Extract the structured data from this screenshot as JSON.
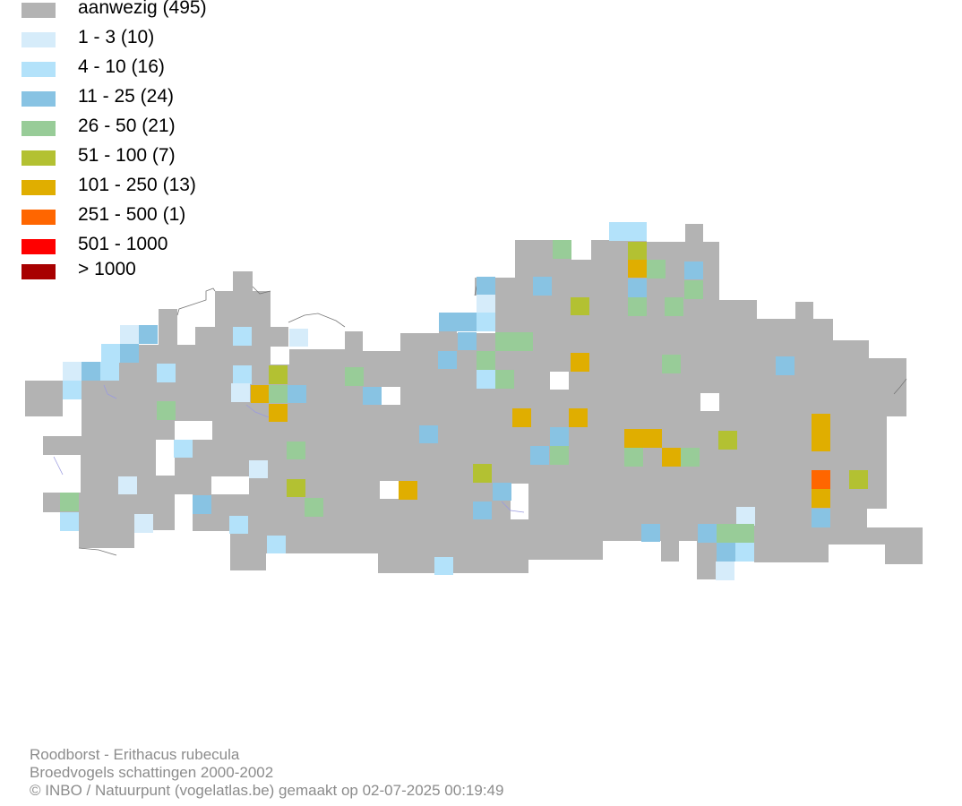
{
  "colors": {
    "aanwezig": "#b3b3b3",
    "c1": "#d6ecfa",
    "c2": "#b3e2fa",
    "c3": "#88c3e3",
    "c4": "#98cc98",
    "c5": "#b3c132",
    "c6": "#e0ae00",
    "c7": "#ff6600",
    "c8": "#ff0000",
    "c9": "#a80000"
  },
  "legend": [
    {
      "label": "aanwezig (495)",
      "color": "#b3b3b3"
    },
    {
      "label": "1 - 3 (10)",
      "color": "#d6ecfa"
    },
    {
      "label": "4 - 10 (16)",
      "color": "#b3e2fa"
    },
    {
      "label": "11 - 25 (24)",
      "color": "#88c3e3"
    },
    {
      "label": "26 - 50 (21)",
      "color": "#98cc98"
    },
    {
      "label": "51 - 100 (7)",
      "color": "#b3c132"
    },
    {
      "label": "101 - 250 (13)",
      "color": "#e0ae00"
    },
    {
      "label": "251 - 500 (1)",
      "color": "#ff6600"
    },
    {
      "label": "501 - 1000",
      "color": "#ff0000"
    },
    {
      "label": "> 1000",
      "color": "#a80000"
    }
  ],
  "footer": {
    "line1": "Roodborst - Erithacus rubecula",
    "line2": "Broedvogels schattingen 2000-2002",
    "line3": "© INBO / Natuurpunt (vogelatlas.be) gemaakt op 02-07-2025 00:19:49"
  }
}
